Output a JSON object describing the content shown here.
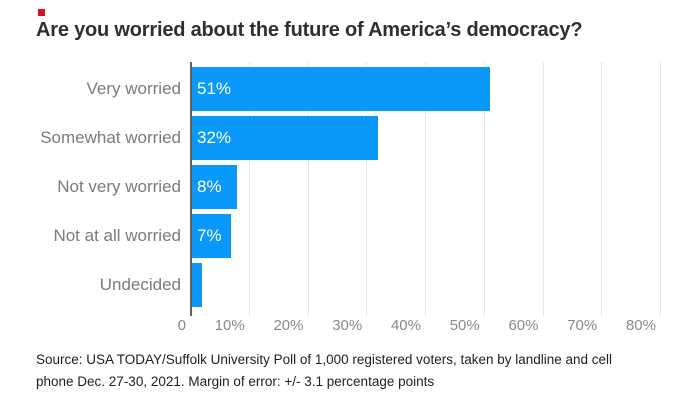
{
  "brand": {
    "accent_color": "#d6131e"
  },
  "title": "Are you worried about the future of America’s democracy?",
  "chart_data": {
    "type": "bar",
    "orientation": "horizontal",
    "title": "Are you worried about the future of America’s democracy?",
    "categories": [
      "Very worried",
      "Somewhat worried",
      "Not very worried",
      "Not at all worried",
      "Undecided"
    ],
    "values": [
      51,
      32,
      8,
      7,
      2
    ],
    "value_labels": [
      "51%",
      "32%",
      "8%",
      "7%",
      ""
    ],
    "xlabel": "",
    "ylabel": "",
    "xlim": [
      0,
      80
    ],
    "grid": true,
    "bar_color": "#0a99fa",
    "gridline_color": "#e7e7e7",
    "x_ticks": [
      {
        "value": 0,
        "label": "0"
      },
      {
        "value": 10,
        "label": "10%"
      },
      {
        "value": 20,
        "label": "20%"
      },
      {
        "value": 30,
        "label": "30%"
      },
      {
        "value": 40,
        "label": "40%"
      },
      {
        "value": 50,
        "label": "50%"
      },
      {
        "value": 60,
        "label": "60%"
      },
      {
        "value": 70,
        "label": "70%"
      },
      {
        "value": 80,
        "label": "80%"
      }
    ]
  },
  "source": {
    "line1": "Source: USA TODAY/Suffolk University Poll of 1,000 registered voters, taken by landline and cell",
    "line2": "phone Dec. 27-30, 2021. Margin of error: +/- 3.1 percentage points"
  }
}
